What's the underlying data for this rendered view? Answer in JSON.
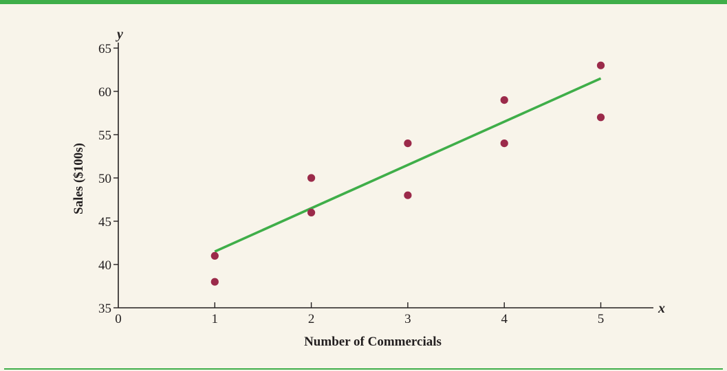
{
  "chart_data": {
    "type": "scatter",
    "xlabel": "Number of Commercials",
    "ylabel": "Sales ($100s)",
    "x_axis_variable": "x",
    "y_axis_variable": "y",
    "xlim": [
      0,
      5.5
    ],
    "ylim": [
      35,
      65
    ],
    "x_ticks": [
      "0",
      "1",
      "2",
      "3",
      "4",
      "5"
    ],
    "y_ticks": [
      "35",
      "40",
      "45",
      "50",
      "55",
      "60",
      "65"
    ],
    "grid": false,
    "points": [
      {
        "x": 1,
        "y": 41
      },
      {
        "x": 1,
        "y": 38
      },
      {
        "x": 2,
        "y": 50
      },
      {
        "x": 2,
        "y": 46
      },
      {
        "x": 3,
        "y": 54
      },
      {
        "x": 3,
        "y": 48
      },
      {
        "x": 4,
        "y": 59
      },
      {
        "x": 4,
        "y": 54
      },
      {
        "x": 5,
        "y": 63
      },
      {
        "x": 5,
        "y": 57
      }
    ],
    "trendline": {
      "x": [
        1,
        5
      ],
      "y": [
        41.5,
        61.5
      ]
    },
    "colors": {
      "points": "#9b2a4a",
      "trendline": "#3fae49",
      "axes": "#231f20",
      "background": "#f8f4ea",
      "rule": "#3fae49"
    }
  }
}
